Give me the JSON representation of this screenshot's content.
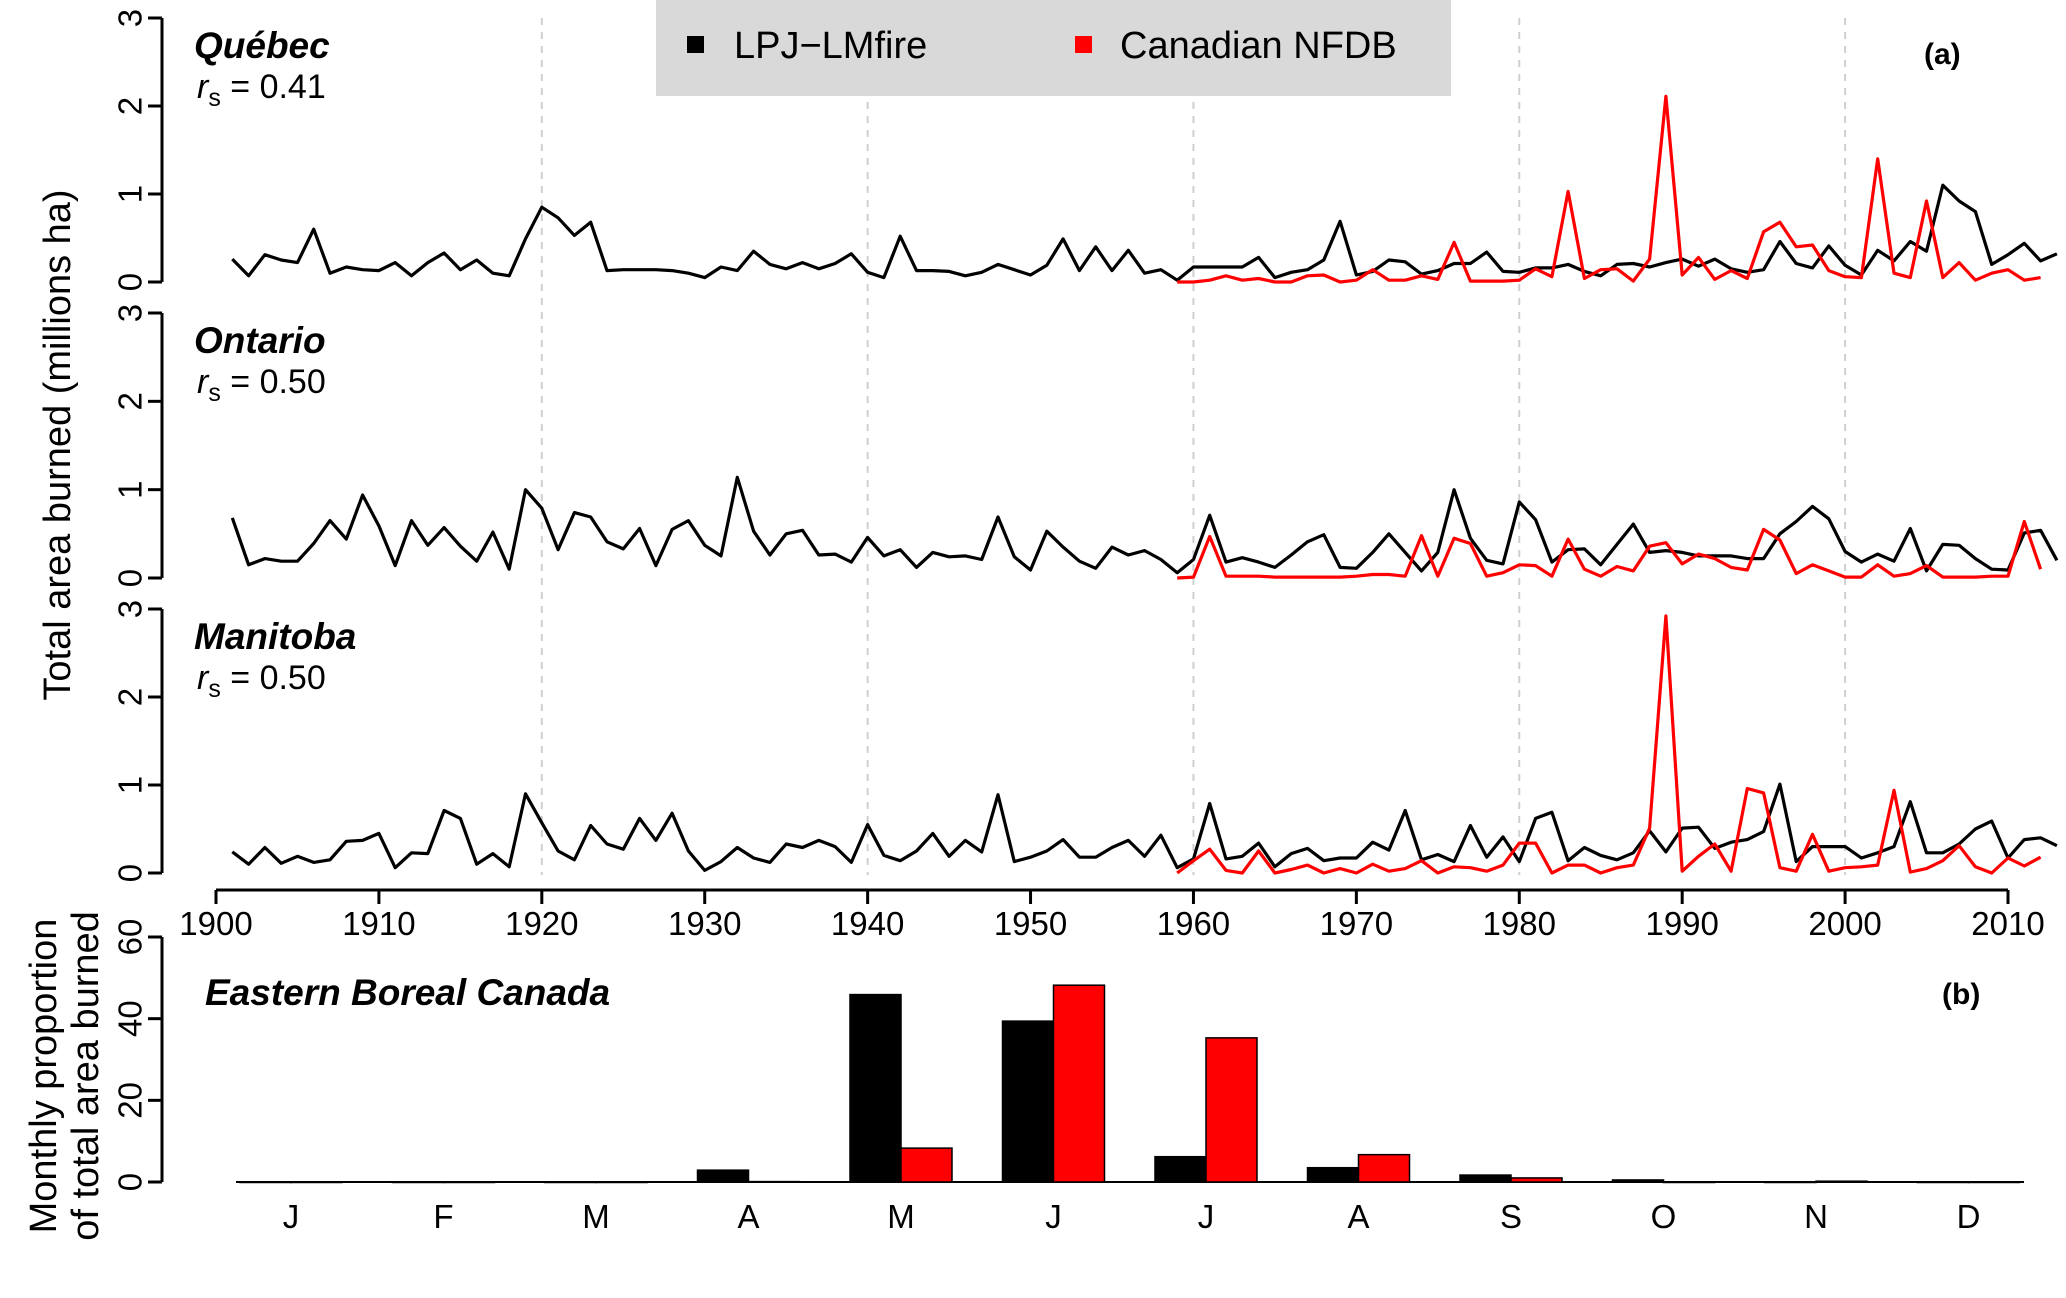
{
  "legend": {
    "model_label": "LPJ−LMfire",
    "obs_label": "Canadian NFDB",
    "model_color": "#000000",
    "obs_color": "#ff0000",
    "background": "#d9d9d9"
  },
  "panel_a_label": "(a)",
  "panel_b_label": "(b)",
  "ylabel_a": "Total area burned (millions ha)",
  "ylabel_b_line1": "Monthly proportion",
  "ylabel_b_line2": "of total area burned",
  "stat_prefix": "r",
  "stat_sub": "s",
  "chart_data": [
    {
      "type": "line",
      "panel": "(a)",
      "x_range": [
        1901,
        2012
      ],
      "x_ticks": [
        "1900",
        "1910",
        "1920",
        "1930",
        "1940",
        "1950",
        "1960",
        "1970",
        "1980",
        "1990",
        "2000",
        "2010"
      ],
      "y_ticks": [
        "0",
        "1",
        "2",
        "3"
      ],
      "ylim": [
        0,
        3
      ],
      "grid": "dashed vertical lines at 1920, 1940, 1960, 1980, 2000",
      "legend_position": "top-center",
      "regions": [
        {
          "name": "Québec",
          "rs": "= 0.41",
          "series": [
            {
              "name": "LPJ−LMfire",
              "x_start": 1901,
              "values": [
                0.26,
                0.07,
                0.31,
                0.25,
                0.22,
                0.6,
                0.1,
                0.17,
                0.14,
                0.13,
                0.22,
                0.07,
                0.22,
                0.33,
                0.14,
                0.25,
                0.1,
                0.07,
                0.49,
                0.85,
                0.73,
                0.53,
                0.68,
                0.13,
                0.14,
                0.14,
                0.14,
                0.13,
                0.1,
                0.05,
                0.17,
                0.13,
                0.35,
                0.2,
                0.15,
                0.22,
                0.15,
                0.21,
                0.32,
                0.11,
                0.05,
                0.52,
                0.13,
                0.13,
                0.12,
                0.07,
                0.11,
                0.2,
                0.14,
                0.08,
                0.19,
                0.49,
                0.13,
                0.4,
                0.13,
                0.36,
                0.1,
                0.14,
                0.02,
                0.17,
                0.17,
                0.17,
                0.17,
                0.28,
                0.05,
                0.11,
                0.14,
                0.25,
                0.69,
                0.08,
                0.12,
                0.25,
                0.23,
                0.09,
                0.13,
                0.21,
                0.21,
                0.34,
                0.12,
                0.11,
                0.16,
                0.16,
                0.2,
                0.12,
                0.07,
                0.2,
                0.21,
                0.17,
                0.22,
                0.26,
                0.18,
                0.26,
                0.15,
                0.11,
                0.14,
                0.46,
                0.21,
                0.16,
                0.41,
                0.19,
                0.08,
                0.36,
                0.24,
                0.46,
                0.35,
                1.1,
                0.92,
                0.8,
                0.2,
                0.31,
                0.44,
                0.24,
                0.32
              ]
            },
            {
              "name": "Canadian NFDB",
              "x_start": 1959,
              "values": [
                0.0,
                0.0,
                0.02,
                0.07,
                0.02,
                0.04,
                0.0,
                0.0,
                0.07,
                0.08,
                0.0,
                0.02,
                0.14,
                0.02,
                0.02,
                0.07,
                0.03,
                0.45,
                0.01,
                0.01,
                0.01,
                0.02,
                0.15,
                0.06,
                1.03,
                0.04,
                0.14,
                0.15,
                0.01,
                0.26,
                2.11,
                0.08,
                0.28,
                0.03,
                0.13,
                0.04,
                0.57,
                0.68,
                0.4,
                0.42,
                0.13,
                0.06,
                0.05,
                1.4,
                0.1,
                0.05,
                0.92,
                0.05,
                0.22,
                0.02,
                0.1,
                0.14,
                0.02,
                0.05
              ]
            }
          ]
        },
        {
          "name": "Ontario",
          "rs": "= 0.50",
          "series": [
            {
              "name": "LPJ−LMfire",
              "x_start": 1901,
              "values": [
                0.68,
                0.15,
                0.22,
                0.19,
                0.19,
                0.39,
                0.65,
                0.44,
                0.94,
                0.59,
                0.14,
                0.65,
                0.37,
                0.57,
                0.36,
                0.19,
                0.52,
                0.1,
                1.0,
                0.79,
                0.32,
                0.74,
                0.69,
                0.41,
                0.33,
                0.56,
                0.14,
                0.55,
                0.65,
                0.37,
                0.25,
                1.14,
                0.53,
                0.26,
                0.5,
                0.54,
                0.26,
                0.27,
                0.18,
                0.46,
                0.25,
                0.32,
                0.12,
                0.29,
                0.24,
                0.25,
                0.21,
                0.69,
                0.24,
                0.09,
                0.53,
                0.35,
                0.19,
                0.11,
                0.35,
                0.26,
                0.31,
                0.21,
                0.06,
                0.21,
                0.71,
                0.18,
                0.23,
                0.18,
                0.12,
                0.26,
                0.41,
                0.49,
                0.12,
                0.11,
                0.29,
                0.5,
                0.29,
                0.08,
                0.29,
                1.0,
                0.45,
                0.2,
                0.16,
                0.86,
                0.66,
                0.18,
                0.32,
                0.33,
                0.15,
                0.38,
                0.61,
                0.29,
                0.31,
                0.29,
                0.25,
                0.25,
                0.25,
                0.22,
                0.22,
                0.5,
                0.64,
                0.81,
                0.67,
                0.3,
                0.18,
                0.27,
                0.19,
                0.56,
                0.08,
                0.38,
                0.37,
                0.22,
                0.1,
                0.09,
                0.51,
                0.54,
                0.2
              ]
            },
            {
              "name": "Canadian NFDB",
              "x_start": 1959,
              "values": [
                0.0,
                0.01,
                0.47,
                0.02,
                0.02,
                0.02,
                0.01,
                0.01,
                0.01,
                0.01,
                0.01,
                0.02,
                0.04,
                0.04,
                0.02,
                0.48,
                0.02,
                0.45,
                0.39,
                0.02,
                0.06,
                0.15,
                0.14,
                0.02,
                0.44,
                0.1,
                0.02,
                0.13,
                0.08,
                0.36,
                0.4,
                0.16,
                0.27,
                0.22,
                0.12,
                0.09,
                0.55,
                0.43,
                0.05,
                0.15,
                0.08,
                0.01,
                0.01,
                0.15,
                0.02,
                0.05,
                0.14,
                0.01,
                0.01,
                0.01,
                0.02,
                0.02,
                0.64,
                0.1
              ]
            }
          ]
        },
        {
          "name": "Manitoba",
          "rs": "= 0.50",
          "series": [
            {
              "name": "LPJ−LMfire",
              "x_start": 1901,
              "values": [
                0.24,
                0.1,
                0.29,
                0.11,
                0.19,
                0.12,
                0.15,
                0.36,
                0.37,
                0.45,
                0.06,
                0.23,
                0.22,
                0.71,
                0.62,
                0.1,
                0.22,
                0.07,
                0.9,
                0.57,
                0.25,
                0.15,
                0.54,
                0.33,
                0.27,
                0.62,
                0.37,
                0.68,
                0.25,
                0.03,
                0.13,
                0.29,
                0.17,
                0.12,
                0.33,
                0.29,
                0.37,
                0.3,
                0.12,
                0.55,
                0.2,
                0.14,
                0.25,
                0.45,
                0.19,
                0.37,
                0.24,
                0.89,
                0.13,
                0.18,
                0.25,
                0.38,
                0.18,
                0.18,
                0.29,
                0.37,
                0.19,
                0.43,
                0.06,
                0.16,
                0.79,
                0.16,
                0.19,
                0.34,
                0.07,
                0.22,
                0.28,
                0.14,
                0.17,
                0.17,
                0.35,
                0.26,
                0.71,
                0.15,
                0.21,
                0.13,
                0.54,
                0.18,
                0.41,
                0.13,
                0.62,
                0.69,
                0.14,
                0.29,
                0.2,
                0.15,
                0.23,
                0.48,
                0.24,
                0.51,
                0.52,
                0.28,
                0.35,
                0.38,
                0.47,
                1.01,
                0.13,
                0.3,
                0.3,
                0.3,
                0.17,
                0.23,
                0.3,
                0.81,
                0.23,
                0.23,
                0.33,
                0.5,
                0.59,
                0.17,
                0.38,
                0.4,
                0.31
              ]
            },
            {
              "name": "Canadian NFDB",
              "x_start": 1959,
              "values": [
                0.0,
                0.14,
                0.27,
                0.03,
                0.0,
                0.25,
                0.0,
                0.04,
                0.09,
                0.0,
                0.05,
                0.0,
                0.1,
                0.02,
                0.05,
                0.14,
                0.0,
                0.07,
                0.06,
                0.02,
                0.09,
                0.34,
                0.34,
                0.0,
                0.09,
                0.09,
                0.0,
                0.06,
                0.09,
                0.51,
                2.92,
                0.02,
                0.19,
                0.33,
                0.02,
                0.96,
                0.91,
                0.06,
                0.02,
                0.44,
                0.02,
                0.06,
                0.07,
                0.09,
                0.94,
                0.01,
                0.05,
                0.14,
                0.31,
                0.07,
                0.0,
                0.17,
                0.08,
                0.18
              ]
            }
          ]
        }
      ]
    },
    {
      "type": "bar",
      "panel": "(b)",
      "title": "Eastern Boreal Canada",
      "categories": [
        "J",
        "F",
        "M",
        "A",
        "M",
        "J",
        "J",
        "A",
        "S",
        "O",
        "N",
        "D"
      ],
      "ylim": [
        0,
        60
      ],
      "y_ticks": [
        "0",
        "20",
        "40",
        "60"
      ],
      "series": [
        {
          "name": "LPJ−LMfire",
          "values": [
            0.0,
            0.0,
            0.0,
            2.9,
            45.9,
            39.4,
            6.2,
            3.5,
            1.7,
            0.5,
            0.0,
            0.0
          ]
        },
        {
          "name": "Canadian NFDB",
          "values": [
            0.0,
            0.0,
            0.0,
            0.1,
            8.3,
            48.2,
            35.3,
            6.7,
            1.0,
            0.0,
            0.2,
            0.0
          ]
        }
      ]
    }
  ]
}
